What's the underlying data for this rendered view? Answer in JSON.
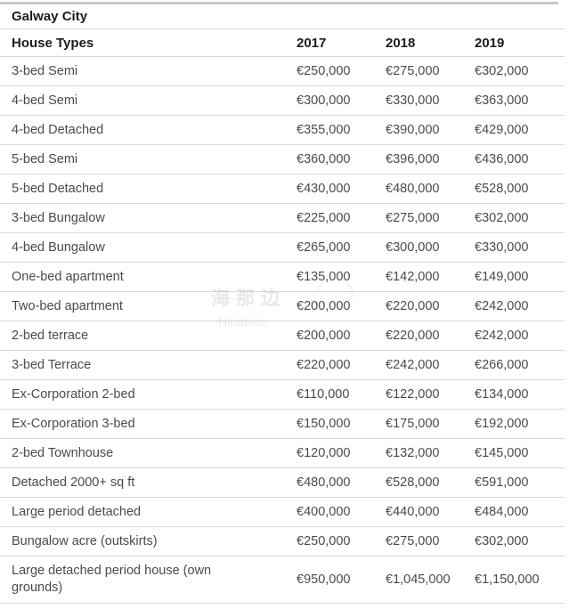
{
  "page": {
    "title": "Galway City"
  },
  "table": {
    "header": {
      "label": "House Types",
      "years": [
        "2017",
        "2018",
        "2019"
      ]
    },
    "rows": [
      {
        "label": "3-bed Semi",
        "values": [
          "€250,000",
          "€275,000",
          "€302,000"
        ]
      },
      {
        "label": "4-bed Semi",
        "values": [
          "€300,000",
          "€330,000",
          "€363,000"
        ]
      },
      {
        "label": "4-bed Detached",
        "values": [
          "€355,000",
          "€390,000",
          "€429,000"
        ]
      },
      {
        "label": "5-bed Semi",
        "values": [
          "€360,000",
          "€396,000",
          "€436,000"
        ]
      },
      {
        "label": "5-bed Detached",
        "values": [
          "€430,000",
          "€480,000",
          "€528,000"
        ]
      },
      {
        "label": "3-bed Bungalow",
        "values": [
          "€225,000",
          "€275,000",
          "€302,000"
        ]
      },
      {
        "label": "4-bed Bungalow",
        "values": [
          "€265,000",
          "€300,000",
          "€330,000"
        ]
      },
      {
        "label": "One-bed apartment",
        "values": [
          "€135,000",
          "€142,000",
          "€149,000"
        ]
      },
      {
        "label": "Two-bed apartment",
        "values": [
          "€200,000",
          "€220,000",
          "€242,000"
        ]
      },
      {
        "label": "2-bed terrace",
        "values": [
          "€200,000",
          "€220,000",
          "€242,000"
        ]
      },
      {
        "label": "3-bed Terrace",
        "values": [
          "€220,000",
          "€242,000",
          "€266,000"
        ]
      },
      {
        "label": "Ex-Corporation 2-bed",
        "values": [
          "€110,000",
          "€122,000",
          "€134,000"
        ]
      },
      {
        "label": "Ex-Corporation 3-bed",
        "values": [
          "€150,000",
          "€175,000",
          "€192,000"
        ]
      },
      {
        "label": "2-bed Townhouse",
        "values": [
          "€120,000",
          "€132,000",
          "€145,000"
        ]
      },
      {
        "label": "Detached 2000+ sq ft",
        "values": [
          "€480,000",
          "€528,000",
          "€591,000"
        ]
      },
      {
        "label": "Large period detached",
        "values": [
          "€400,000",
          "€440,000",
          "€484,000"
        ]
      },
      {
        "label": "Bungalow acre (outskirts)",
        "values": [
          "€250,000",
          "€275,000",
          "€302,000"
        ]
      },
      {
        "label": "Large detached period house (own grounds)",
        "values": [
          "€950,000",
          "€1,045,000",
          "€1,150,000"
        ]
      }
    ]
  },
  "watermark": {
    "line1": "海那边",
    "line2": "Hinabian"
  },
  "colors": {
    "header_text": "#1c1c1c",
    "body_text": "#4b4b4b",
    "divider": "#d9d9d9",
    "top_border": "#c8c8c8",
    "background": "#ffffff"
  },
  "chart_data": {
    "type": "table",
    "title": "Galway City",
    "columns": [
      "House Types",
      "2017",
      "2018",
      "2019"
    ],
    "currency": "EUR",
    "rows": [
      [
        "3-bed Semi",
        250000,
        275000,
        302000
      ],
      [
        "4-bed Semi",
        300000,
        330000,
        363000
      ],
      [
        "4-bed Detached",
        355000,
        390000,
        429000
      ],
      [
        "5-bed Semi",
        360000,
        396000,
        436000
      ],
      [
        "5-bed Detached",
        430000,
        480000,
        528000
      ],
      [
        "3-bed Bungalow",
        225000,
        275000,
        302000
      ],
      [
        "4-bed Bungalow",
        265000,
        300000,
        330000
      ],
      [
        "One-bed apartment",
        135000,
        142000,
        149000
      ],
      [
        "Two-bed apartment",
        200000,
        220000,
        242000
      ],
      [
        "2-bed terrace",
        200000,
        220000,
        242000
      ],
      [
        "3-bed Terrace",
        220000,
        242000,
        266000
      ],
      [
        "Ex-Corporation 2-bed",
        110000,
        122000,
        134000
      ],
      [
        "Ex-Corporation 3-bed",
        150000,
        175000,
        192000
      ],
      [
        "2-bed Townhouse",
        120000,
        132000,
        145000
      ],
      [
        "Detached 2000+ sq ft",
        480000,
        528000,
        591000
      ],
      [
        "Large period detached",
        400000,
        440000,
        484000
      ],
      [
        "Bungalow acre (outskirts)",
        250000,
        275000,
        302000
      ],
      [
        "Large detached period house (own grounds)",
        950000,
        1045000,
        1150000
      ]
    ]
  }
}
